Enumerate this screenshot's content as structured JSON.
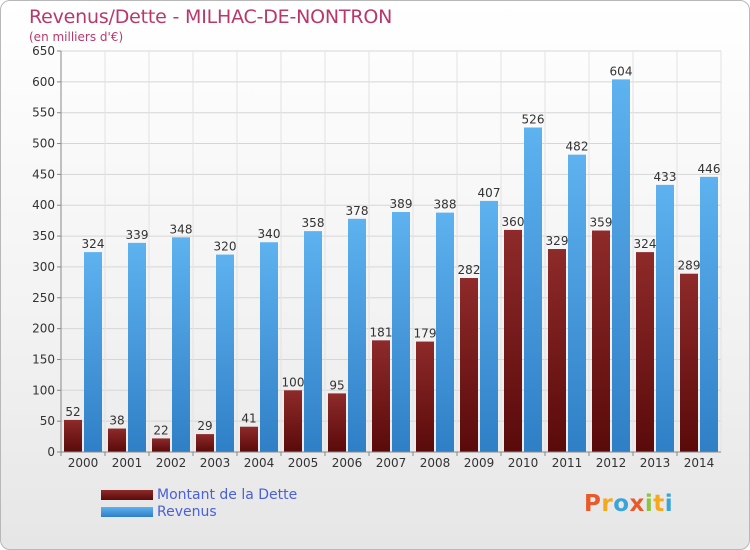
{
  "header": {
    "title": "Revenus/Dette - MILHAC-DE-NONTRON",
    "subtitle": "(en milliers d'€)"
  },
  "logo": {
    "text": "Proxiti",
    "letters": [
      {
        "ch": "P",
        "color": "#e85a2a"
      },
      {
        "ch": "r",
        "color": "#f5a81c"
      },
      {
        "ch": "o",
        "color": "#3aa4d8"
      },
      {
        "ch": "x",
        "color": "#e85a2a"
      },
      {
        "ch": "i",
        "color": "#8cc63e"
      },
      {
        "ch": "t",
        "color": "#f5a81c"
      },
      {
        "ch": "i",
        "color": "#3aa4d8"
      }
    ]
  },
  "chart_data": {
    "type": "bar",
    "title": "Revenus/Dette - MILHAC-DE-NONTRON",
    "subtitle": "(en milliers d'€)",
    "categories": [
      "2000",
      "2001",
      "2002",
      "2003",
      "2004",
      "2005",
      "2006",
      "2007",
      "2008",
      "2009",
      "2010",
      "2011",
      "2012",
      "2013",
      "2014"
    ],
    "series": [
      {
        "name": "Montant de la Dette",
        "color": "#7a1a1a",
        "values": [
          52,
          38,
          22,
          29,
          41,
          100,
          95,
          181,
          179,
          282,
          360,
          329,
          359,
          324,
          289
        ]
      },
      {
        "name": "Revenus",
        "color": "#4aa3e8",
        "values": [
          324,
          339,
          348,
          320,
          340,
          358,
          378,
          389,
          388,
          407,
          526,
          482,
          604,
          433,
          446
        ]
      }
    ],
    "ylim": [
      0,
      650
    ],
    "yticks": [
      0,
      50,
      100,
      150,
      200,
      250,
      300,
      350,
      400,
      450,
      500,
      550,
      600,
      650
    ],
    "grid": true,
    "legend_position": "bottom-left"
  }
}
